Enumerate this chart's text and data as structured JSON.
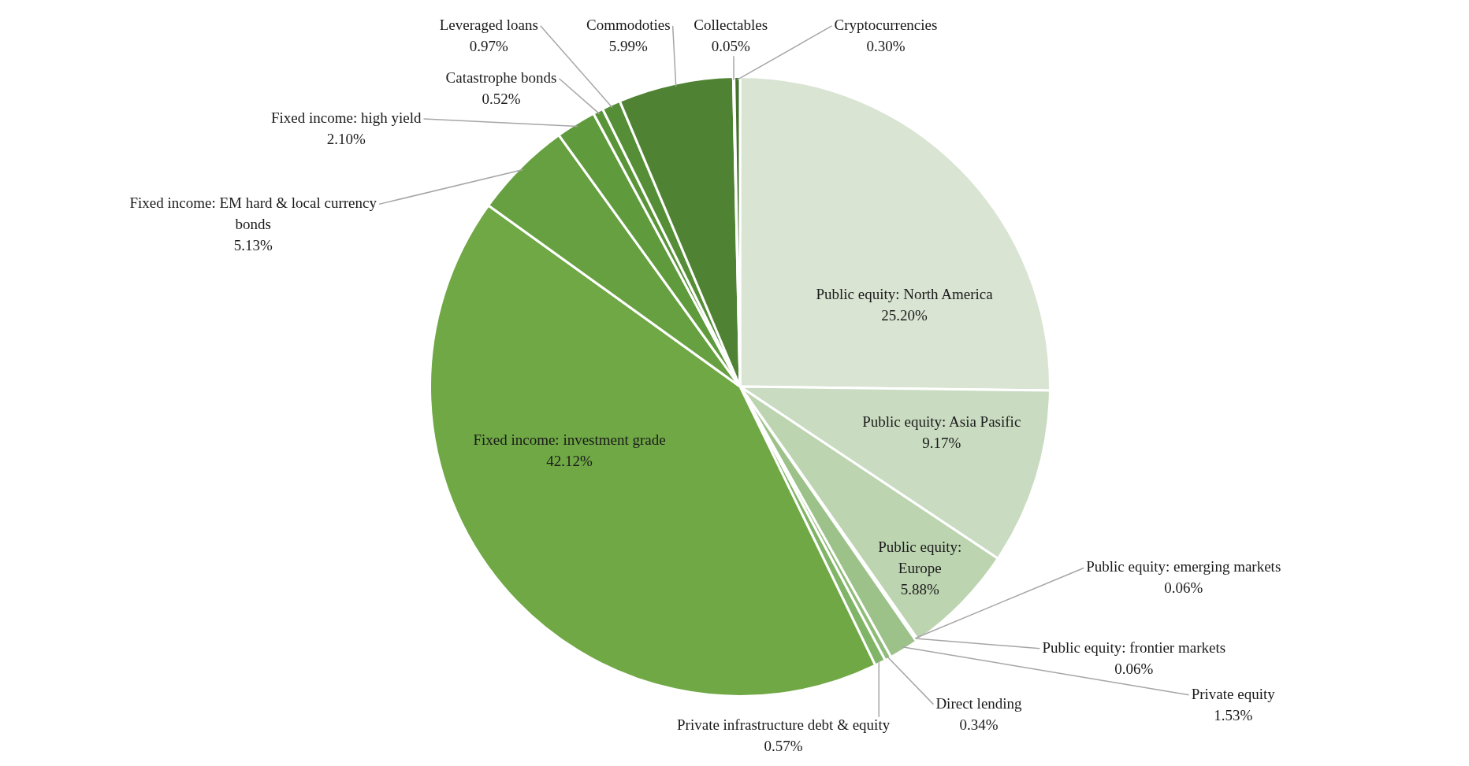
{
  "chart_data": {
    "type": "pie",
    "categories": [
      "Public equity: North America",
      "Public equity: Asia Pasific",
      "Public equity: Europe",
      "Public equity: emerging markets",
      "Public equity: frontier markets",
      "Private equity",
      "Direct lending",
      "Private infrastructure debt & equity",
      "Fixed income: investment grade",
      "Fixed income: EM hard & local currency bonds",
      "Fixed income: high yield",
      "Catastrophe bonds",
      "Leveraged loans",
      "Commodoties",
      "Collectables",
      "Cryptocurrencies"
    ],
    "values": [
      25.2,
      9.17,
      5.88,
      0.06,
      0.06,
      1.53,
      0.34,
      0.57,
      42.12,
      5.13,
      2.1,
      0.52,
      0.97,
      5.99,
      0.05,
      0.3
    ],
    "value_labels": [
      "25.20%",
      "9.17%",
      "5.88%",
      "0.06%",
      "0.06%",
      "1.53%",
      "0.34%",
      "0.57%",
      "42.12%",
      "5.13%",
      "2.10%",
      "0.52%",
      "0.97%",
      "5.99%",
      "0.05%",
      "0.30%"
    ],
    "colors": [
      "#d9e4d3",
      "#c9dcc1",
      "#bcd4b0",
      "#b0cca2",
      "#a6c696",
      "#9cc28a",
      "#8fbc78",
      "#80b466",
      "#6fa845",
      "#66a040",
      "#5f9a3c",
      "#5a9438",
      "#558e36",
      "#4f8233",
      "#4a7a30",
      "#44702c"
    ]
  }
}
